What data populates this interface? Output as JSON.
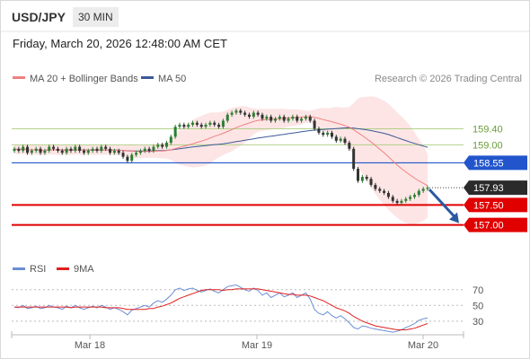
{
  "header": {
    "symbol": "USD/JPY",
    "timeframe": "30 MIN",
    "datetime": "Friday, March 20, 2026 12:48:00 AM CET"
  },
  "legend": {
    "ma20_label": "MA 20 + Bollinger Bands",
    "ma50_label": "MA 50",
    "credit": "Research © 2026 Trading Central",
    "colors": {
      "ma20": "#f08080",
      "ma50": "#3b5998",
      "bands_fill": "#fde2e2"
    }
  },
  "rsi_legend": {
    "rsi_label": "RSI",
    "ma_label": "9MA",
    "colors": {
      "rsi": "#6b8ed6",
      "ma": "#e02020"
    }
  },
  "chart_data": {
    "type": "candlestick",
    "current_price": 157.93,
    "price_range": [
      156.5,
      160.35
    ],
    "levels": [
      {
        "price": 159.4,
        "label": "159.40",
        "color": "#a8cc7a",
        "style": "thin"
      },
      {
        "price": 159.0,
        "label": "159.00",
        "color": "#a8cc7a",
        "style": "thin"
      },
      {
        "price": 158.55,
        "label": "158.55",
        "color": "#2255cc",
        "style": "solid"
      },
      {
        "price": 157.5,
        "label": "157.50",
        "color": "#e00000",
        "style": "thick"
      },
      {
        "price": 157.0,
        "label": "157.00",
        "color": "#e00000",
        "style": "thick"
      }
    ],
    "x_labels": [
      "Mar 18",
      "Mar 19",
      "Mar 20"
    ],
    "rsi_levels": [
      {
        "value": 70,
        "label": "70"
      },
      {
        "value": 50,
        "label": "50"
      },
      {
        "value": 30,
        "label": "30"
      }
    ],
    "forecast": {
      "from": 157.93,
      "to": 157.0,
      "color": "#2a5aa0"
    },
    "closes": [
      158.9,
      158.85,
      158.95,
      158.8,
      158.85,
      158.9,
      158.8,
      158.85,
      158.95,
      158.9,
      158.85,
      158.8,
      158.9,
      158.85,
      158.95,
      158.85,
      158.8,
      158.85,
      158.9,
      158.85,
      158.95,
      158.9,
      158.8,
      158.85,
      158.8,
      158.7,
      158.6,
      158.75,
      158.8,
      158.85,
      158.9,
      158.85,
      158.95,
      159.0,
      158.95,
      159.05,
      159.2,
      159.45,
      159.5,
      159.45,
      159.5,
      159.55,
      159.5,
      159.45,
      159.5,
      159.55,
      159.5,
      159.45,
      159.6,
      159.75,
      159.8,
      159.85,
      159.8,
      159.75,
      159.7,
      159.8,
      159.75,
      159.65,
      159.7,
      159.6,
      159.65,
      159.7,
      159.6,
      159.65,
      159.7,
      159.6,
      159.65,
      159.7,
      159.6,
      159.4,
      159.3,
      159.25,
      159.3,
      159.2,
      159.1,
      159.15,
      159.05,
      158.9,
      158.4,
      158.1,
      158.2,
      158.15,
      158.0,
      157.9,
      157.85,
      157.8,
      157.7,
      157.6,
      157.55,
      157.6,
      157.65,
      157.7,
      157.75,
      157.85,
      157.9,
      157.93
    ],
    "rsi": [
      48,
      47,
      50,
      46,
      47,
      49,
      46,
      47,
      50,
      48,
      47,
      45,
      49,
      47,
      50,
      47,
      45,
      47,
      49,
      47,
      50,
      48,
      45,
      47,
      45,
      42,
      38,
      44,
      46,
      48,
      50,
      48,
      53,
      56,
      54,
      58,
      63,
      70,
      72,
      69,
      71,
      72,
      69,
      67,
      69,
      71,
      68,
      66,
      70,
      74,
      75,
      76,
      73,
      70,
      68,
      72,
      69,
      63,
      66,
      60,
      63,
      66,
      61,
      63,
      66,
      60,
      63,
      66,
      58,
      45,
      40,
      38,
      42,
      37,
      34,
      37,
      33,
      28,
      22,
      20,
      24,
      23,
      21,
      20,
      19,
      18,
      17,
      16,
      17,
      19,
      22,
      24,
      27,
      31,
      33,
      34
    ],
    "rsi_ma": [
      48,
      48,
      48,
      48,
      48,
      48,
      48,
      48,
      48,
      48,
      48,
      48,
      48,
      47,
      48,
      48,
      48,
      48,
      48,
      48,
      48,
      47,
      47,
      47,
      47,
      46,
      45,
      45,
      45,
      45,
      45,
      46,
      46,
      48,
      49,
      51,
      53,
      56,
      59,
      61,
      63,
      65,
      67,
      69,
      70,
      70,
      70,
      70,
      69,
      70,
      70,
      71,
      71,
      71,
      71,
      71,
      71,
      70,
      69,
      68,
      67,
      66,
      65,
      64,
      64,
      63,
      63,
      63,
      62,
      60,
      58,
      56,
      53,
      50,
      47,
      45,
      43,
      40,
      36,
      33,
      30,
      28,
      26,
      24,
      23,
      22,
      21,
      20,
      19,
      19,
      19,
      20,
      21,
      23,
      25,
      27
    ]
  }
}
